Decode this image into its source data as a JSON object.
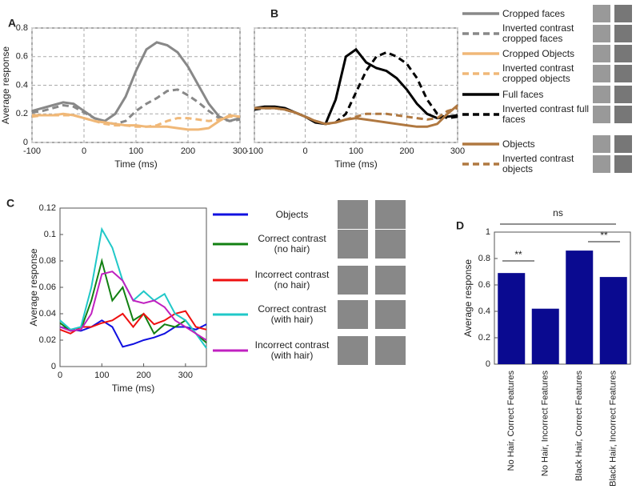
{
  "chart_data": [
    {
      "type": "line",
      "panel": "A",
      "x_label": "Time (ms)",
      "y_label": "Average response",
      "grid": true,
      "xlim": [
        -100,
        300
      ],
      "ylim": [
        0,
        0.8
      ],
      "xticks": [
        -100,
        0,
        100,
        200,
        300
      ],
      "yticks": [
        0,
        0.2,
        0.4,
        0.6,
        0.8
      ],
      "x": [
        -100,
        -80,
        -60,
        -40,
        -20,
        0,
        20,
        40,
        60,
        80,
        100,
        120,
        140,
        160,
        180,
        200,
        220,
        240,
        260,
        280,
        300
      ],
      "series": [
        {
          "name": "Cropped faces",
          "color": "#888888",
          "dashed": false,
          "values": [
            0.22,
            0.24,
            0.26,
            0.28,
            0.27,
            0.22,
            0.17,
            0.15,
            0.2,
            0.32,
            0.5,
            0.65,
            0.7,
            0.68,
            0.63,
            0.53,
            0.4,
            0.27,
            0.18,
            0.15,
            0.17
          ]
        },
        {
          "name": "Inverted contrast cropped faces",
          "color": "#888888",
          "dashed": true,
          "values": [
            0.21,
            0.22,
            0.24,
            0.26,
            0.25,
            0.21,
            0.17,
            0.14,
            0.13,
            0.15,
            0.22,
            0.27,
            0.31,
            0.36,
            0.37,
            0.33,
            0.28,
            0.22,
            0.17,
            0.15,
            0.16
          ]
        },
        {
          "name": "Cropped Objects",
          "color": "#f0b878",
          "dashed": false,
          "values": [
            0.19,
            0.19,
            0.19,
            0.2,
            0.19,
            0.17,
            0.15,
            0.14,
            0.13,
            0.12,
            0.12,
            0.11,
            0.11,
            0.11,
            0.1,
            0.09,
            0.09,
            0.1,
            0.15,
            0.19,
            0.18
          ]
        },
        {
          "name": "Inverted contrast cropped objects",
          "color": "#f0b878",
          "dashed": true,
          "values": [
            0.18,
            0.19,
            0.19,
            0.19,
            0.19,
            0.17,
            0.15,
            0.13,
            0.12,
            0.12,
            0.11,
            0.11,
            0.12,
            0.15,
            0.17,
            0.17,
            0.16,
            0.15,
            0.16,
            0.18,
            0.18
          ]
        }
      ]
    },
    {
      "type": "line",
      "panel": "B",
      "x_label": "Time (ms)",
      "grid": true,
      "xlim": [
        -100,
        300
      ],
      "ylim": [
        0,
        0.8
      ],
      "xticks": [
        -100,
        0,
        100,
        200,
        300
      ],
      "x": [
        -100,
        -80,
        -60,
        -40,
        -20,
        0,
        20,
        40,
        60,
        80,
        100,
        120,
        140,
        160,
        180,
        200,
        220,
        240,
        260,
        280,
        300
      ],
      "series": [
        {
          "name": "Full faces",
          "color": "#000000",
          "dashed": false,
          "values": [
            0.24,
            0.25,
            0.25,
            0.24,
            0.21,
            0.18,
            0.14,
            0.13,
            0.3,
            0.6,
            0.65,
            0.56,
            0.52,
            0.5,
            0.45,
            0.37,
            0.27,
            0.2,
            0.17,
            0.18,
            0.19
          ]
        },
        {
          "name": "Inverted contrast full faces",
          "color": "#000000",
          "dashed": true,
          "values": [
            0.23,
            0.24,
            0.24,
            0.23,
            0.21,
            0.18,
            0.15,
            0.13,
            0.14,
            0.2,
            0.35,
            0.5,
            0.6,
            0.63,
            0.6,
            0.55,
            0.45,
            0.3,
            0.2,
            0.17,
            0.18
          ]
        },
        {
          "name": "Objects",
          "color": "#b07840",
          "dashed": false,
          "values": [
            0.24,
            0.24,
            0.24,
            0.23,
            0.21,
            0.18,
            0.15,
            0.13,
            0.14,
            0.16,
            0.17,
            0.16,
            0.15,
            0.14,
            0.13,
            0.12,
            0.11,
            0.11,
            0.13,
            0.2,
            0.26
          ]
        },
        {
          "name": "Inverted contrast objects",
          "color": "#b07840",
          "dashed": true,
          "values": [
            0.24,
            0.24,
            0.24,
            0.23,
            0.21,
            0.18,
            0.15,
            0.13,
            0.14,
            0.16,
            0.18,
            0.2,
            0.2,
            0.2,
            0.19,
            0.18,
            0.17,
            0.16,
            0.17,
            0.22,
            0.24
          ]
        }
      ]
    },
    {
      "type": "line",
      "panel": "C",
      "x_label": "Time (ms)",
      "y_label": "Average response",
      "grid": false,
      "xlim": [
        0,
        350
      ],
      "ylim": [
        0,
        0.12
      ],
      "xticks": [
        0,
        100,
        200,
        300
      ],
      "yticks": [
        0,
        0.02,
        0.04,
        0.06,
        0.08,
        0.1,
        0.12
      ],
      "x": [
        0,
        25,
        50,
        75,
        100,
        125,
        150,
        175,
        200,
        225,
        250,
        275,
        300,
        325,
        350
      ],
      "series": [
        {
          "name": "Objects",
          "color": "#1010e0",
          "dashed": false,
          "values": [
            0.03,
            0.028,
            0.027,
            0.03,
            0.035,
            0.03,
            0.015,
            0.017,
            0.02,
            0.022,
            0.025,
            0.03,
            0.03,
            0.028,
            0.032
          ]
        },
        {
          "name": "Correct contrast (no hair)",
          "color": "#128012",
          "dashed": false,
          "values": [
            0.033,
            0.027,
            0.028,
            0.05,
            0.08,
            0.05,
            0.06,
            0.035,
            0.04,
            0.025,
            0.032,
            0.03,
            0.035,
            0.025,
            0.018
          ]
        },
        {
          "name": "Incorrect contrast (no hair)",
          "color": "#ee1010",
          "dashed": false,
          "values": [
            0.028,
            0.025,
            0.03,
            0.03,
            0.033,
            0.035,
            0.04,
            0.03,
            0.04,
            0.032,
            0.035,
            0.04,
            0.042,
            0.03,
            0.028
          ]
        },
        {
          "name": "Correct contrast (with hair)",
          "color": "#20c8c8",
          "dashed": false,
          "values": [
            0.035,
            0.028,
            0.03,
            0.06,
            0.104,
            0.09,
            0.065,
            0.05,
            0.057,
            0.05,
            0.055,
            0.04,
            0.035,
            0.025,
            0.014
          ]
        },
        {
          "name": "Incorrect contrast (with hair)",
          "color": "#c020c0",
          "dashed": false,
          "values": [
            0.03,
            0.027,
            0.028,
            0.04,
            0.07,
            0.072,
            0.065,
            0.05,
            0.048,
            0.05,
            0.045,
            0.035,
            0.03,
            0.025,
            0.02
          ]
        }
      ]
    },
    {
      "type": "bar",
      "panel": "D",
      "y_label": "Average response",
      "grid": false,
      "color": "#0a0a90",
      "ylim": [
        0,
        1
      ],
      "yticks": [
        0,
        0.2,
        0.4,
        0.6,
        0.8,
        1
      ],
      "categories": [
        "No Hair, Correct Features",
        "No Hair, Incorrect Features",
        "Black Hair, Correct Features",
        "Black Hair, Incorrect Features"
      ],
      "values": [
        0.69,
        0.42,
        0.86,
        0.66
      ],
      "annotations": [
        "**",
        "**",
        "ns"
      ]
    }
  ]
}
